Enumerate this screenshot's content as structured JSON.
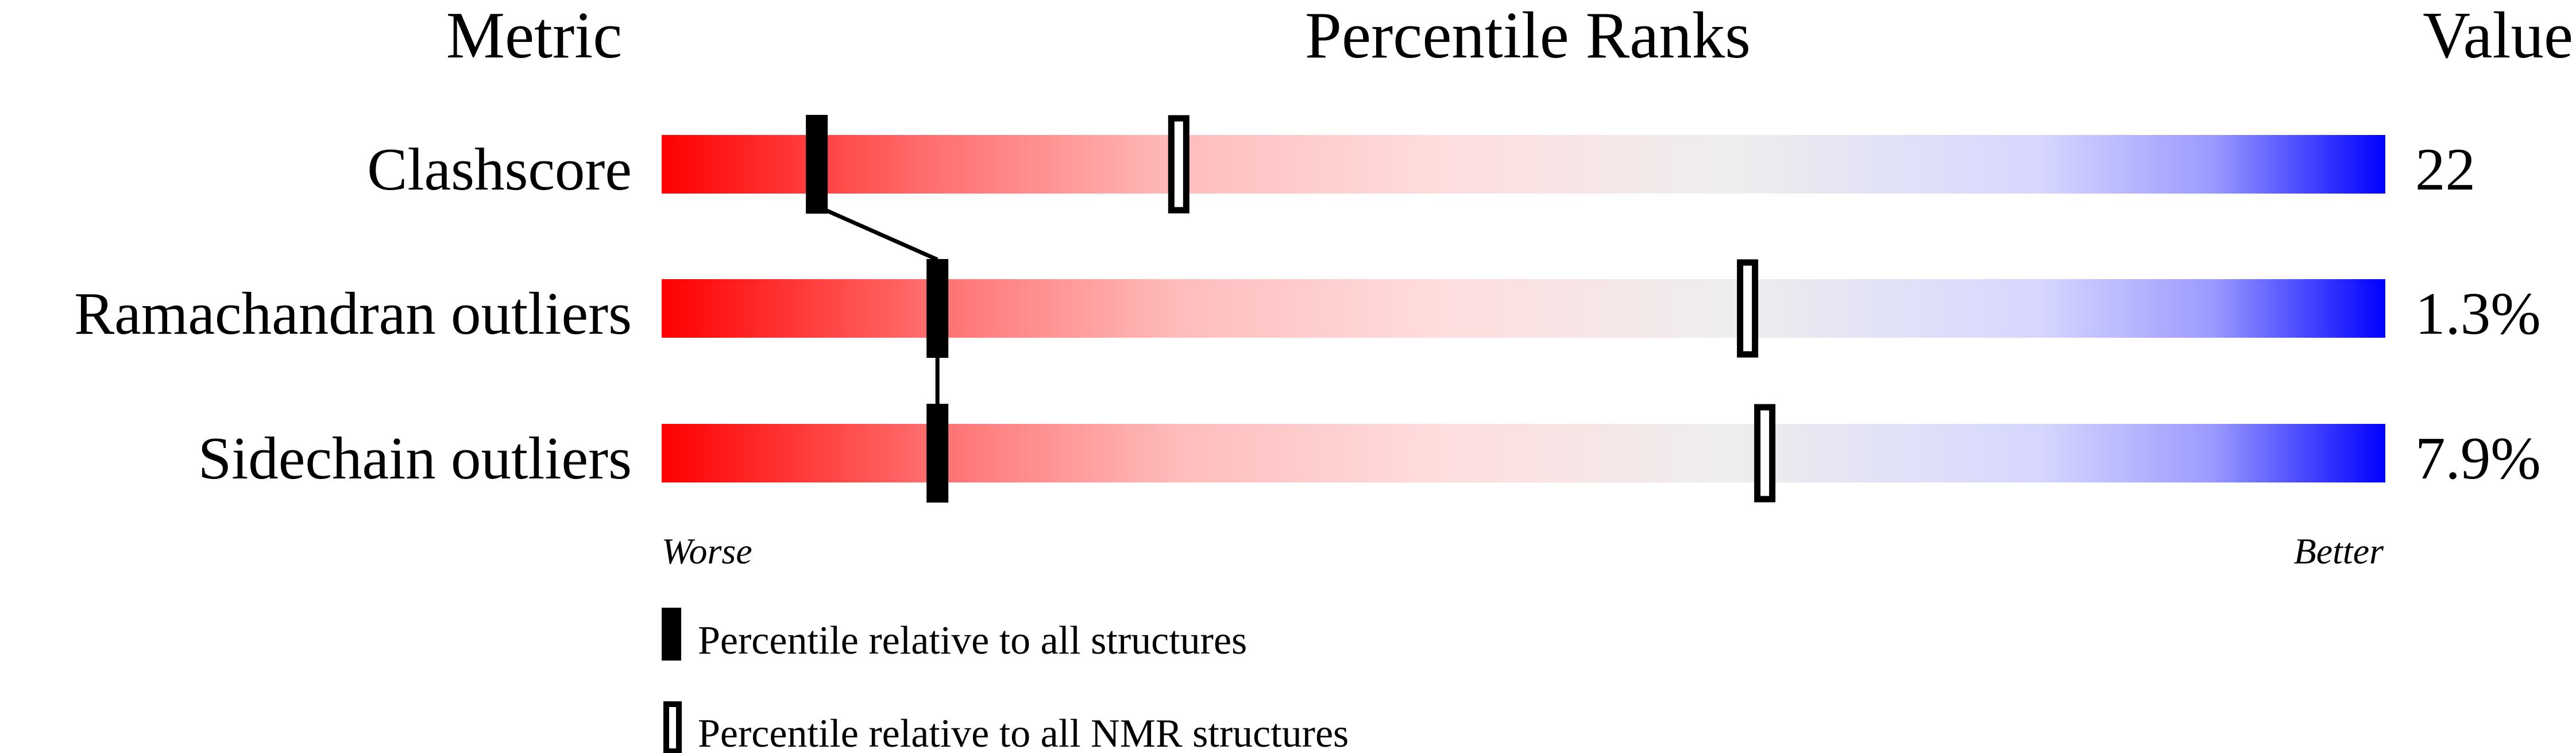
{
  "chart_data": {
    "type": "percentile-bars",
    "headers": {
      "metric": "Metric",
      "ranks": "Percentile Ranks",
      "value": "Value"
    },
    "axis": {
      "min_label": "Worse",
      "max_label": "Better",
      "range": [
        0,
        100
      ]
    },
    "rows": [
      {
        "metric": "Clashscore",
        "value": "22",
        "percentile_all": 9,
        "percentile_nmr": 30
      },
      {
        "metric": "Ramachandran outliers",
        "value": "1.3%",
        "percentile_all": 16,
        "percentile_nmr": 63
      },
      {
        "metric": "Sidechain outliers",
        "value": "7.9%",
        "percentile_all": 16,
        "percentile_nmr": 64
      }
    ],
    "legend": [
      {
        "marker": "filled",
        "label": "Percentile relative to all structures"
      },
      {
        "marker": "open",
        "label": "Percentile relative to all NMR structures"
      }
    ],
    "colors": {
      "worse": "#ff0000",
      "middle": "#eeeeee",
      "better": "#0000ff"
    }
  }
}
